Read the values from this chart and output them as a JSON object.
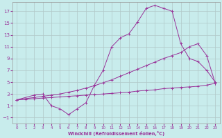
{
  "xlabel": "Windchill (Refroidissement éolien,°C)",
  "bg_color": "#c8ecec",
  "grid_color": "#b0c8c8",
  "line_color": "#993399",
  "xlim": [
    -0.5,
    23.5
  ],
  "ylim": [
    -2,
    18.5
  ],
  "xticks": [
    0,
    1,
    2,
    3,
    4,
    5,
    6,
    7,
    8,
    9,
    10,
    11,
    12,
    13,
    14,
    15,
    16,
    17,
    18,
    19,
    20,
    21,
    22,
    23
  ],
  "yticks": [
    -1,
    1,
    3,
    5,
    7,
    9,
    11,
    13,
    15,
    17
  ],
  "line1_x": [
    0,
    1,
    2,
    3,
    4,
    5,
    6,
    7,
    8,
    9,
    10,
    11,
    12,
    13,
    14,
    15,
    16,
    17,
    18,
    19,
    20,
    21,
    22,
    23
  ],
  "line1_y": [
    2.0,
    2.1,
    2.2,
    2.3,
    2.4,
    2.5,
    2.6,
    2.7,
    2.8,
    2.9,
    3.0,
    3.1,
    3.2,
    3.3,
    3.5,
    3.6,
    3.7,
    3.9,
    4.0,
    4.1,
    4.2,
    4.3,
    4.5,
    4.8
  ],
  "line2_x": [
    0,
    1,
    2,
    3,
    4,
    5,
    6,
    7,
    8,
    9,
    10,
    11,
    12,
    13,
    14,
    15,
    16,
    17,
    18,
    19,
    20,
    21,
    22,
    23
  ],
  "line2_y": [
    2.0,
    2.2,
    2.4,
    2.6,
    2.8,
    3.0,
    3.3,
    3.6,
    4.0,
    4.4,
    4.9,
    5.4,
    6.0,
    6.6,
    7.2,
    7.8,
    8.4,
    9.0,
    9.5,
    10.0,
    11.0,
    11.5,
    9.5,
    4.8
  ],
  "line3_x": [
    0,
    2,
    3,
    4,
    5,
    6,
    7,
    8,
    9,
    10,
    11,
    12,
    13,
    14,
    15,
    16,
    17,
    18,
    19,
    20,
    21,
    22,
    23
  ],
  "line3_y": [
    2.0,
    2.8,
    3.0,
    1.0,
    0.5,
    -0.5,
    0.5,
    1.5,
    4.5,
    7.0,
    11.0,
    12.5,
    13.2,
    15.2,
    17.5,
    18.0,
    17.5,
    17.0,
    11.5,
    9.0,
    8.5,
    7.0,
    5.0
  ]
}
